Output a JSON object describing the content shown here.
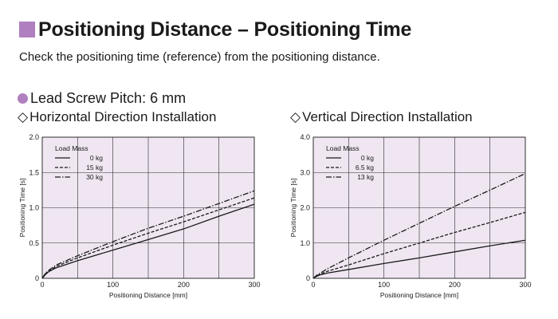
{
  "header": {
    "title": "Positioning Distance – Positioning Time",
    "subtitle": "Check the positioning time (reference) from the positioning distance.",
    "pitch_label": "Lead Screw Pitch: 6 mm",
    "accent_color": "#b07fbf",
    "plot_background": "#efe6f2"
  },
  "chart_data": [
    {
      "type": "line",
      "title": "Horizontal Direction Installation",
      "xlabel": "Positioning Distance [mm]",
      "ylabel": "Positioning Time [s]",
      "xlim": [
        0,
        300
      ],
      "ylim": [
        0,
        2.0
      ],
      "xticks": [
        "0",
        "100",
        "200",
        "300"
      ],
      "yticks": [
        "0",
        "0.5",
        "1.0",
        "1.5",
        "2.0"
      ],
      "grid": true,
      "legend_title": "Load Mass",
      "legend_position": "top-left",
      "series": [
        {
          "name": "0 kg",
          "dash": "solid",
          "x": [
            0,
            5,
            10,
            20,
            50,
            100,
            150,
            200,
            250,
            300
          ],
          "y": [
            0,
            0.06,
            0.1,
            0.15,
            0.25,
            0.4,
            0.55,
            0.7,
            0.88,
            1.05
          ]
        },
        {
          "name": "15 kg",
          "dash": "dashed",
          "x": [
            0,
            5,
            10,
            20,
            50,
            100,
            150,
            200,
            250,
            300
          ],
          "y": [
            0,
            0.07,
            0.11,
            0.17,
            0.29,
            0.47,
            0.64,
            0.8,
            0.97,
            1.14
          ]
        },
        {
          "name": "30 kg",
          "dash": "dashdot",
          "x": [
            0,
            5,
            10,
            20,
            50,
            100,
            150,
            200,
            250,
            300
          ],
          "y": [
            0,
            0.08,
            0.12,
            0.19,
            0.32,
            0.52,
            0.71,
            0.88,
            1.06,
            1.24
          ]
        }
      ]
    },
    {
      "type": "line",
      "title": "Vertical Direction Installation",
      "xlabel": "Positioning Distance [mm]",
      "ylabel": "Positioning Time [s]",
      "xlim": [
        0,
        300
      ],
      "ylim": [
        0,
        4.0
      ],
      "xticks": [
        "0",
        "100",
        "200",
        "300"
      ],
      "yticks": [
        "0",
        "1.0",
        "2.0",
        "3.0",
        "4.0"
      ],
      "grid": true,
      "legend_title": "Load Mass",
      "legend_position": "top-left",
      "series": [
        {
          "name": "0 kg",
          "dash": "solid",
          "x": [
            0,
            5,
            10,
            20,
            50,
            100,
            150,
            200,
            250,
            300
          ],
          "y": [
            0,
            0.06,
            0.1,
            0.15,
            0.25,
            0.42,
            0.58,
            0.75,
            0.92,
            1.08
          ]
        },
        {
          "name": "6.5 kg",
          "dash": "dashed",
          "x": [
            0,
            5,
            10,
            20,
            50,
            100,
            150,
            200,
            250,
            300
          ],
          "y": [
            0,
            0.07,
            0.12,
            0.2,
            0.38,
            0.7,
            1.0,
            1.3,
            1.58,
            1.87
          ]
        },
        {
          "name": "13 kg",
          "dash": "dashdot",
          "x": [
            0,
            5,
            10,
            20,
            50,
            100,
            150,
            200,
            250,
            300
          ],
          "y": [
            0,
            0.09,
            0.15,
            0.27,
            0.58,
            1.08,
            1.56,
            2.04,
            2.5,
            2.97
          ]
        }
      ]
    }
  ]
}
